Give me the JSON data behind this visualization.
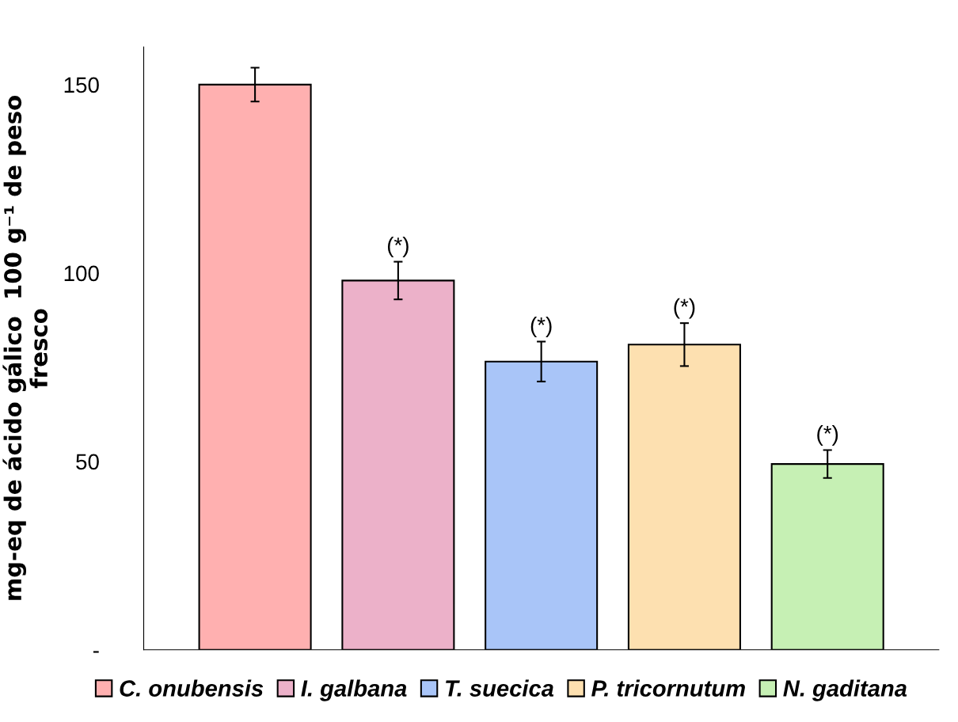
{
  "chart_data": {
    "type": "bar",
    "ylabel": "mg-eq de ácido gálico  100 g⁻¹ de peso\nfresco",
    "categories": [
      null
    ],
    "series": [
      {
        "name": "C. onubensis",
        "color": "#ffb0b0",
        "values": [
          150
        ],
        "errors": [
          4.5
        ]
      },
      {
        "name": "I. galbana",
        "color": "#ecb1c9",
        "values": [
          98
        ],
        "errors": [
          5
        ]
      },
      {
        "name": "T. suecica",
        "color": "#a9c5f8",
        "values": [
          76.5
        ],
        "errors": [
          5.3
        ]
      },
      {
        "name": "P. tricornutum",
        "color": "#fde0b0",
        "values": [
          81
        ],
        "errors": [
          5.7
        ]
      },
      {
        "name": "N. gaditana",
        "color": "#c6f0b4",
        "values": [
          49.3
        ],
        "errors": [
          3.7
        ]
      }
    ],
    "annotations": [
      "(*)",
      "(*)",
      "(*)",
      "(*)"
    ],
    "ylim": [
      0,
      160
    ],
    "yticks": [
      {
        "value": 0,
        "label": "-"
      },
      50,
      100,
      150
    ],
    "tick_labels": "y",
    "legend": "bottom",
    "grid": false
  }
}
